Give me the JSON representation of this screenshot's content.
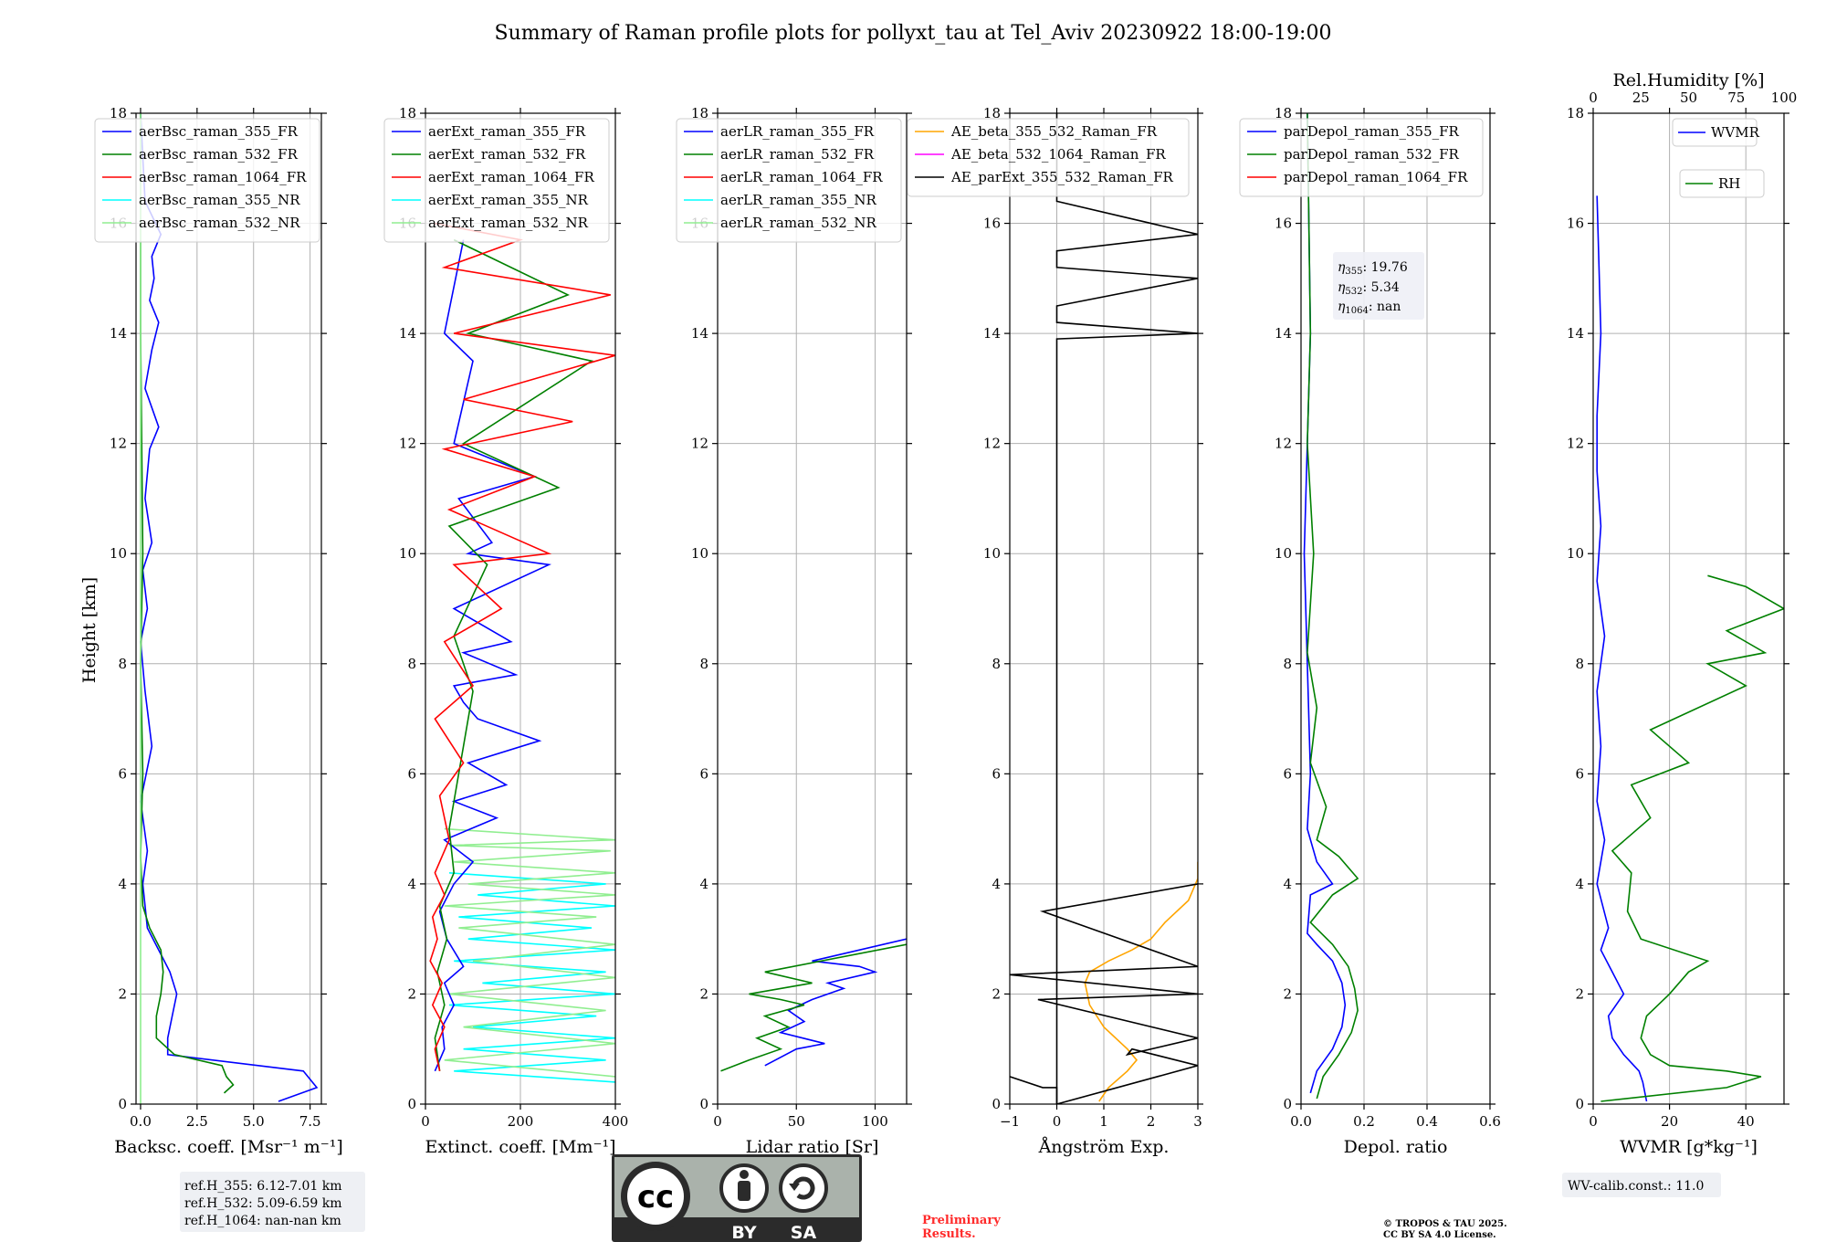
{
  "figure_title": "Summary of Raman profile plots for pollyxt_tau at Tel_Aviv 20230922 18:00-19:00",
  "height_label": "Height [km]",
  "colors": {
    "c355": "#0000ff",
    "c532": "#008000",
    "c1064": "#ff0000",
    "c355nr": "#00ffff",
    "c532nr": "#90ee90",
    "ae1": "#ffa500",
    "ae2": "#ff00ff",
    "ae3": "#000000"
  },
  "ref_heights": {
    "r355": "ref.H_355: 6.12-7.01 km",
    "r532": "ref.H_532: 5.09-6.59 km",
    "r1064": "ref.H_1064: nan-nan km"
  },
  "eta": {
    "e355": ": 19.76",
    "e532": ": 5.34",
    "e1064": ": nan"
  },
  "wv_calib": "WV-calib.const.: 11.0",
  "preliminary": [
    "Preliminary",
    "Results."
  ],
  "copyright": [
    "© TROPOS & TAU 2025.",
    "CC BY SA 4.0 License."
  ],
  "license_badge": {
    "cc": "cc",
    "by": "BY",
    "sa": "SA"
  },
  "chart_data": [
    {
      "type": "line",
      "title": "",
      "xlabel": "Backsc. coeff. [Msr⁻¹ m⁻¹]",
      "ylabel": "Height [km]",
      "xlim": [
        -0.2,
        8.0
      ],
      "ylim": [
        0,
        18
      ],
      "xticks": [
        0.0,
        2.5,
        5.0,
        7.5
      ],
      "xtick_labels": [
        "0.0",
        "2.5",
        "5.0",
        "7.5"
      ],
      "legend": [
        "aerBsc_raman_355_FR",
        "aerBsc_raman_532_FR",
        "aerBsc_raman_1064_FR",
        "aerBsc_raman_355_NR",
        "aerBsc_raman_532_NR"
      ],
      "legend_colors": [
        "c355",
        "c532",
        "c1064",
        "c355nr",
        "c532nr"
      ],
      "series": [
        {
          "name": "aerBsc_raman_355_FR",
          "color": "c355",
          "x": [
            6.1,
            7.8,
            7.2,
            1.2,
            1.2,
            1.4,
            1.6,
            1.3,
            0.8,
            0.3,
            0.1,
            0.3,
            0.0,
            0.5,
            0.2,
            0.0,
            0.3,
            0.1,
            0.5,
            0.2,
            0.4,
            0.8,
            0.2,
            0.5,
            0.8,
            0.4,
            0.6,
            0.5,
            0.9,
            0.2,
            0.1,
            0.0
          ],
          "y": [
            0.05,
            0.3,
            0.6,
            0.9,
            1.2,
            1.6,
            2.0,
            2.4,
            2.8,
            3.2,
            4.0,
            4.6,
            5.5,
            6.5,
            7.5,
            8.4,
            9.0,
            9.7,
            10.2,
            11.0,
            11.9,
            12.3,
            13.0,
            13.7,
            14.2,
            14.6,
            15.0,
            15.4,
            15.8,
            16.4,
            17.2,
            18.0
          ]
        },
        {
          "name": "aerBsc_raman_532_FR",
          "color": "c532",
          "x": [
            3.7,
            4.1,
            3.8,
            3.6,
            1.5,
            0.7,
            0.7,
            0.9,
            1.0,
            0.9,
            0.4,
            0.1,
            0.0,
            0.1,
            0.0,
            0.1,
            0.0,
            0.0
          ],
          "y": [
            0.2,
            0.35,
            0.5,
            0.7,
            0.9,
            1.2,
            1.6,
            2.0,
            2.4,
            2.8,
            3.2,
            3.6,
            4.5,
            6.0,
            8.0,
            10.0,
            14.0,
            18.0
          ]
        },
        {
          "name": "aerBsc_raman_532_NR",
          "color": "c532nr",
          "x": [
            0.0,
            0.0,
            0.0
          ],
          "y": [
            0.0,
            9.0,
            18.0
          ]
        }
      ]
    },
    {
      "type": "line",
      "xlabel": "Extinct. coeff. [Mm⁻¹]",
      "xlim": [
        0,
        400
      ],
      "ylim": [
        0,
        18
      ],
      "xticks": [
        0,
        200,
        400
      ],
      "xtick_labels": [
        "0",
        "200",
        "400"
      ],
      "legend": [
        "aerExt_raman_355_FR",
        "aerExt_raman_532_FR",
        "aerExt_raman_1064_FR",
        "aerExt_raman_355_NR",
        "aerExt_raman_532_NR"
      ],
      "legend_colors": [
        "c355",
        "c532",
        "c1064",
        "c355nr",
        "c532nr"
      ],
      "series": [
        {
          "name": "aerExt_raman_355_NR",
          "color": "c355nr",
          "x": [
            400,
            60,
            380,
            80,
            400,
            100,
            360,
            50,
            400,
            120,
            380,
            60,
            400,
            90,
            350,
            70,
            400,
            110,
            380,
            50
          ],
          "y": [
            0.4,
            0.6,
            0.8,
            1.0,
            1.2,
            1.4,
            1.6,
            1.8,
            2.0,
            2.2,
            2.4,
            2.6,
            2.8,
            3.0,
            3.2,
            3.4,
            3.6,
            3.8,
            4.0,
            4.2
          ]
        },
        {
          "name": "aerExt_raman_532_NR",
          "color": "c532nr",
          "x": [
            400,
            40,
            400,
            80,
            380,
            50,
            400,
            100,
            400,
            70,
            360,
            40,
            400,
            90,
            400,
            60,
            390,
            50,
            400,
            40
          ],
          "y": [
            0.5,
            0.8,
            1.1,
            1.4,
            1.7,
            2.0,
            2.3,
            2.6,
            2.9,
            3.2,
            3.4,
            3.6,
            3.8,
            4.0,
            4.2,
            4.4,
            4.6,
            4.7,
            4.8,
            5.0
          ]
        },
        {
          "name": "aerExt_raman_355_FR",
          "color": "c355",
          "x": [
            20,
            40,
            35,
            60,
            40,
            80,
            45,
            30,
            60,
            100,
            40,
            150,
            60,
            170,
            90,
            240,
            110,
            80,
            60,
            190,
            80,
            180,
            60,
            260,
            90,
            140,
            70,
            230,
            60,
            100,
            40,
            80
          ],
          "y": [
            0.6,
            1.0,
            1.4,
            1.8,
            2.2,
            2.5,
            3.0,
            3.5,
            4.0,
            4.4,
            4.8,
            5.2,
            5.5,
            5.8,
            6.2,
            6.6,
            7.0,
            7.3,
            7.6,
            7.8,
            8.2,
            8.4,
            9.0,
            9.8,
            10.0,
            10.2,
            11.0,
            11.4,
            12.0,
            13.5,
            14.0,
            15.7
          ]
        },
        {
          "name": "aerExt_raman_532_FR",
          "color": "c532",
          "x": [
            30,
            20,
            40,
            25,
            45,
            30,
            60,
            50,
            80,
            100,
            60,
            130,
            50,
            280,
            80,
            350,
            90,
            300,
            60
          ],
          "y": [
            0.6,
            1.2,
            1.8,
            2.4,
            3.0,
            3.6,
            4.2,
            5.0,
            6.5,
            7.5,
            8.5,
            9.8,
            10.5,
            11.2,
            12.0,
            13.5,
            14.0,
            14.7,
            15.7
          ]
        },
        {
          "name": "aerExt_raman_1064_FR",
          "color": "c1064",
          "x": [
            30,
            20,
            40,
            15,
            35,
            10,
            25,
            15,
            40,
            20,
            50,
            30,
            80,
            20,
            100,
            40,
            160,
            60,
            260,
            50,
            230,
            40,
            310,
            80,
            400,
            60,
            390,
            40,
            200,
            20
          ],
          "y": [
            0.6,
            1.0,
            1.4,
            1.8,
            2.2,
            2.6,
            3.0,
            3.4,
            3.8,
            4.2,
            4.8,
            5.6,
            6.2,
            7.0,
            7.6,
            8.4,
            9.0,
            9.8,
            10.0,
            10.8,
            11.4,
            11.9,
            12.4,
            12.8,
            13.6,
            14.0,
            14.7,
            15.2,
            15.7,
            16.0
          ]
        }
      ]
    },
    {
      "type": "line",
      "xlabel": "Lidar ratio [Sr]",
      "xlim": [
        0,
        120
      ],
      "ylim": [
        0,
        18
      ],
      "xticks": [
        0,
        50,
        100
      ],
      "xtick_labels": [
        "0",
        "50",
        "100"
      ],
      "legend": [
        "aerLR_raman_355_FR",
        "aerLR_raman_532_FR",
        "aerLR_raman_1064_FR",
        "aerLR_raman_355_NR",
        "aerLR_raman_532_NR"
      ],
      "legend_colors": [
        "c355",
        "c532",
        "c1064",
        "c355nr",
        "c532nr"
      ],
      "series": [
        {
          "name": "aerLR_raman_355_FR",
          "color": "c355",
          "x": [
            30,
            50,
            68,
            40,
            55,
            45,
            60,
            80,
            70,
            100,
            90,
            60,
            120
          ],
          "y": [
            0.7,
            1.0,
            1.1,
            1.3,
            1.5,
            1.7,
            1.9,
            2.1,
            2.2,
            2.4,
            2.5,
            2.6,
            3.0
          ]
        },
        {
          "name": "aerLR_raman_532_FR",
          "color": "c532",
          "x": [
            2,
            20,
            40,
            25,
            45,
            30,
            55,
            40,
            20,
            60,
            30,
            120
          ],
          "y": [
            0.6,
            0.8,
            1.0,
            1.2,
            1.4,
            1.6,
            1.8,
            1.9,
            2.0,
            2.2,
            2.4,
            2.9
          ]
        }
      ]
    },
    {
      "type": "line",
      "xlabel": "Ångström Exp.",
      "xlim": [
        -1,
        3
      ],
      "ylim": [
        0,
        18
      ],
      "xticks": [
        -1,
        0,
        1,
        2,
        3
      ],
      "xtick_labels": [
        "−1",
        "0",
        "1",
        "2",
        "3"
      ],
      "legend": [
        "AE_beta_355_532_Raman_FR",
        "AE_beta_532_1064_Raman_FR",
        "AE_parExt_355_532_Raman_FR"
      ],
      "legend_colors": [
        "ae1",
        "ae2",
        "ae3"
      ],
      "series": [
        {
          "name": "AE_beta_355_532_Raman_FR",
          "color": "ae1",
          "x": [
            0.9,
            1.1,
            1.5,
            1.7,
            1.5,
            1.0,
            0.7,
            0.6,
            0.7,
            1.1,
            1.6,
            2.0,
            2.1,
            2.3,
            2.8,
            3.0,
            3.0
          ],
          "y": [
            0.05,
            0.3,
            0.6,
            0.8,
            1.0,
            1.4,
            1.8,
            2.2,
            2.4,
            2.6,
            2.8,
            3.0,
            3.1,
            3.3,
            3.7,
            4.1,
            4.4
          ]
        },
        {
          "name": "AE_parExt_355_532_Raman_FR",
          "color": "ae3",
          "x": [
            -1.0,
            -0.3,
            0.0,
            0.0,
            3.0,
            1.6,
            1.5,
            3.0,
            -0.4,
            3.0,
            -1.0,
            3.0,
            -0.3,
            3.0
          ],
          "y": [
            0.5,
            0.3,
            0.3,
            0.0,
            0.7,
            1.0,
            0.9,
            1.2,
            1.9,
            2.0,
            2.35,
            2.5,
            3.5,
            4.0
          ]
        },
        {
          "name": "AE_parExt_355_532_Raman_FR",
          "color": "ae3",
          "x": [
            0.0,
            0.0,
            3.0,
            0.0,
            0.0,
            3.0,
            0.0,
            0.0,
            3.0,
            0.0,
            0.0
          ],
          "y": [
            18.0,
            16.4,
            15.8,
            15.5,
            15.2,
            15.0,
            14.5,
            14.2,
            14.0,
            13.9,
            0.0
          ]
        }
      ]
    },
    {
      "type": "line",
      "xlabel": "Depol. ratio",
      "xlim": [
        0,
        0.6
      ],
      "ylim": [
        0,
        18
      ],
      "xticks": [
        0.0,
        0.2,
        0.4,
        0.6
      ],
      "xtick_labels": [
        "0.0",
        "0.2",
        "0.4",
        "0.6"
      ],
      "legend": [
        "parDepol_raman_355_FR",
        "parDepol_raman_532_FR",
        "parDepol_raman_1064_FR"
      ],
      "legend_colors": [
        "c355",
        "c532",
        "c1064"
      ],
      "series": [
        {
          "name": "parDepol_raman_355_FR",
          "color": "c355",
          "x": [
            0.03,
            0.05,
            0.1,
            0.13,
            0.14,
            0.13,
            0.1,
            0.05,
            0.02,
            0.03,
            0.1,
            0.05,
            0.02,
            0.03,
            0.02,
            0.01,
            0.03,
            0.02
          ],
          "y": [
            0.2,
            0.6,
            1.0,
            1.4,
            1.8,
            2.2,
            2.6,
            2.9,
            3.1,
            3.8,
            4.0,
            4.4,
            5.0,
            6.0,
            8.0,
            10.0,
            14.0,
            18.0
          ]
        },
        {
          "name": "parDepol_raman_532_FR",
          "color": "c532",
          "x": [
            0.05,
            0.07,
            0.12,
            0.16,
            0.18,
            0.17,
            0.15,
            0.1,
            0.03,
            0.1,
            0.18,
            0.12,
            0.05,
            0.08,
            0.03,
            0.05,
            0.02,
            0.04,
            0.02,
            0.03,
            0.02
          ],
          "y": [
            0.1,
            0.5,
            0.9,
            1.3,
            1.7,
            2.1,
            2.5,
            2.9,
            3.3,
            3.8,
            4.1,
            4.5,
            4.8,
            5.4,
            6.2,
            7.2,
            8.2,
            10.0,
            12.0,
            14.0,
            18.0
          ]
        }
      ]
    },
    {
      "type": "line",
      "xlabel": "WVMR [g*kg⁻¹]",
      "x2label": "Rel.Humidity [%]",
      "xlim": [
        0,
        50
      ],
      "x2lim": [
        0,
        100
      ],
      "ylim": [
        0,
        18
      ],
      "xticks": [
        0,
        20,
        40
      ],
      "xtick_labels": [
        "0",
        "20",
        "40"
      ],
      "x2ticks": [
        0,
        25,
        50,
        75,
        100
      ],
      "x2tick_labels": [
        "0",
        "25",
        "50",
        "75",
        "100"
      ],
      "legend": [
        "WVMR",
        "RH"
      ],
      "legend_colors": [
        "c355",
        "c532"
      ],
      "series": [
        {
          "name": "WVMR",
          "color": "c355",
          "x": [
            14,
            13,
            12,
            8,
            5,
            4,
            8,
            5,
            2,
            4,
            1,
            3,
            1,
            2,
            1,
            3,
            1,
            2,
            1,
            1,
            2,
            1
          ],
          "y": [
            0.05,
            0.4,
            0.6,
            0.9,
            1.2,
            1.6,
            2.0,
            2.4,
            2.8,
            3.2,
            4.0,
            4.8,
            5.5,
            6.5,
            7.5,
            8.5,
            9.5,
            10.5,
            11.5,
            12.5,
            14.0,
            16.5
          ]
        },
        {
          "name": "RH",
          "color": "c532",
          "x": [
            4,
            70,
            88,
            70,
            40,
            30,
            25,
            28,
            40,
            50,
            60,
            25,
            18,
            20,
            10,
            30,
            20,
            50,
            30,
            80,
            60,
            90,
            70,
            100,
            80,
            60
          ],
          "y": [
            0.05,
            0.3,
            0.5,
            0.6,
            0.7,
            0.9,
            1.2,
            1.6,
            2.0,
            2.4,
            2.6,
            3.0,
            3.5,
            4.2,
            4.6,
            5.2,
            5.8,
            6.2,
            6.8,
            7.6,
            8.0,
            8.2,
            8.6,
            9.0,
            9.4,
            9.6
          ]
        }
      ]
    }
  ]
}
